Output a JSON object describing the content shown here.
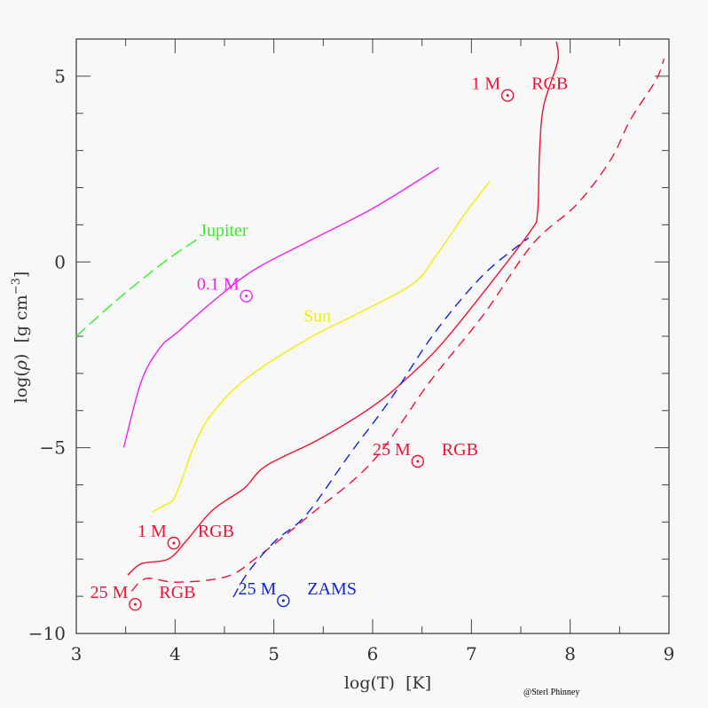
{
  "chart_data": {
    "type": "line",
    "title": "",
    "xlabel": "log(T)  [K]",
    "ylabel_parts": {
      "prefix": "log(",
      "rho": "ρ",
      "suffix": ")  [g cm",
      "exp": "−3",
      "close": "]"
    },
    "xlim": [
      3,
      9
    ],
    "ylim": [
      -10,
      6
    ],
    "x_ticks": [
      3,
      4,
      5,
      6,
      7,
      8,
      9
    ],
    "x_tick_labels": [
      "3",
      "4",
      "5",
      "6",
      "7",
      "8",
      "9"
    ],
    "y_ticks": [
      5,
      0,
      -5,
      -10
    ],
    "y_tick_labels": [
      "5",
      "0",
      "−5",
      "−10"
    ],
    "x_minor_step": 0.5,
    "y_minor_step": 1,
    "grid": false,
    "series": [
      {
        "name": "Jupiter",
        "color": "#33ee22",
        "dash": "dashed",
        "x": [
          3.0,
          3.4,
          3.89,
          4.22
        ],
        "y": [
          -2.0,
          -1.05,
          -0.0,
          0.6
        ]
      },
      {
        "name": "0.1 Msun",
        "color": "#ee22ee",
        "dash": "solid",
        "x": [
          3.48,
          3.66,
          3.85,
          4.02,
          4.38,
          4.79,
          5.33,
          6.0,
          6.67
        ],
        "y": [
          -5.0,
          -3.2,
          -2.3,
          -1.9,
          -1.07,
          -0.23,
          0.53,
          1.44,
          2.54
        ]
      },
      {
        "name": "Sun",
        "color": "#f0f000",
        "dash": "solid",
        "x": [
          3.77,
          3.89,
          3.98,
          4.07,
          4.2,
          4.38,
          4.74,
          5.37,
          5.82,
          6.4,
          6.63,
          6.94,
          7.19
        ],
        "y": [
          -6.73,
          -6.55,
          -6.4,
          -5.85,
          -4.9,
          -4.06,
          -3.1,
          -2.03,
          -1.43,
          -0.6,
          0.12,
          1.32,
          2.18
        ]
      },
      {
        "name": "1 Msun RGB",
        "color": "#ee1133",
        "dash": "solid",
        "x": [
          3.52,
          3.66,
          3.93,
          4.11,
          4.38,
          4.7,
          4.92,
          5.46,
          6.0,
          6.36,
          6.72,
          7.26,
          7.6,
          7.67,
          7.69,
          7.73,
          7.86,
          7.88,
          7.86
        ],
        "y": [
          -8.43,
          -8.12,
          -8.0,
          -7.52,
          -6.68,
          -6.09,
          -5.49,
          -4.77,
          -3.89,
          -3.1,
          -2.14,
          -0.35,
          0.84,
          1.32,
          2.99,
          4.18,
          5.26,
          5.6,
          5.93
        ]
      },
      {
        "name": "25 Msun RGB",
        "color": "#ee1133",
        "dash": "dashed",
        "x": [
          3.56,
          3.71,
          4.02,
          4.52,
          4.83,
          5.37,
          6.0,
          6.58,
          7.12,
          7.62,
          8.07,
          8.41,
          8.61,
          8.87,
          8.95
        ],
        "y": [
          -8.86,
          -8.52,
          -8.62,
          -8.47,
          -7.95,
          -6.8,
          -5.37,
          -3.22,
          -1.43,
          0.48,
          1.56,
          2.75,
          3.83,
          4.9,
          5.47
        ]
      },
      {
        "name": "25 Msun ZAMS",
        "color": "#1122dd",
        "dash": "dashed",
        "x": [
          4.59,
          4.74,
          5.01,
          5.33,
          5.78,
          6.18,
          6.63,
          7.12,
          7.58
        ],
        "y": [
          -9.02,
          -8.35,
          -7.52,
          -6.8,
          -5.13,
          -3.7,
          -1.9,
          -0.35,
          0.65
        ]
      }
    ],
    "annotations": [
      {
        "id": "jupiter",
        "text": "Jupiter",
        "color": "#33ee22",
        "x": 4.25,
        "y": 0.7
      },
      {
        "id": "m01",
        "text": "0.1 M",
        "sun_symbol": true,
        "color": "#ee22ee",
        "x": 4.22,
        "y": -0.75
      },
      {
        "id": "sun",
        "text": "Sun",
        "color": "#f0f000",
        "x": 5.3,
        "y": -1.6
      },
      {
        "id": "m1top",
        "text": "1 M",
        "sun_symbol": true,
        "suffix": "RGB",
        "color": "#ee1133",
        "x": 7.0,
        "y": 4.65
      },
      {
        "id": "m25mid",
        "text": "25 M",
        "sun_symbol": true,
        "suffix": "RGB",
        "color": "#ee1133",
        "x": 6.0,
        "y": -5.2
      },
      {
        "id": "m1bot",
        "text": "1 M",
        "sun_symbol": true,
        "suffix": "RGB",
        "color": "#ee1133",
        "x": 3.62,
        "y": -7.4
      },
      {
        "id": "m25bot",
        "text": "25 M",
        "sun_symbol": true,
        "suffix": "RGB",
        "color": "#ee1133",
        "x": 3.14,
        "y": -9.05
      },
      {
        "id": "m25zams",
        "text": "25 M",
        "sun_symbol": true,
        "suffix": "ZAMS",
        "color": "#1122dd",
        "x": 4.64,
        "y": -8.95
      }
    ],
    "credit": "@Sterl Phinney"
  },
  "colors": {
    "axis": "#444444",
    "background": "#f8f8f8"
  }
}
